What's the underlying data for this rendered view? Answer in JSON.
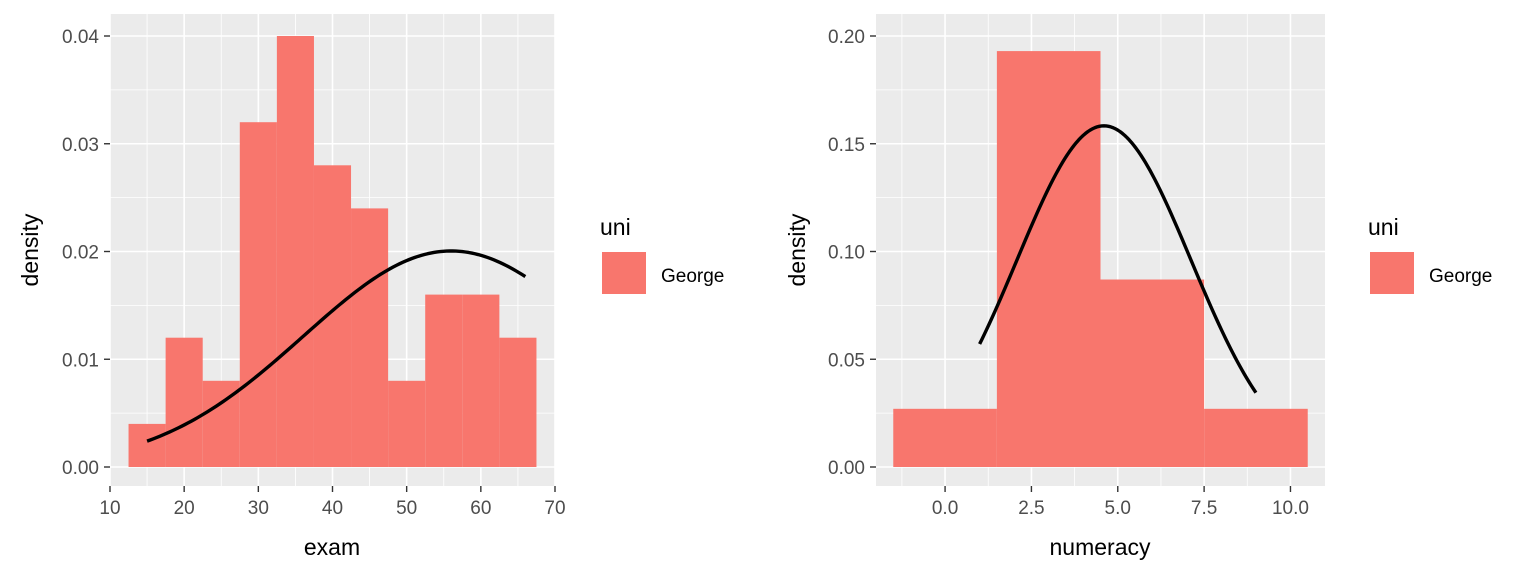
{
  "chart_data": [
    {
      "type": "bar",
      "xlabel": "exam",
      "ylabel": "density",
      "xlim": [
        10,
        70
      ],
      "ylim": [
        0,
        0.04
      ],
      "x_ticks": [
        10,
        20,
        30,
        40,
        50,
        60,
        70
      ],
      "x_tick_labels": [
        "10",
        "20",
        "30",
        "40",
        "50",
        "60",
        "70"
      ],
      "y_ticks": [
        0,
        0.01,
        0.02,
        0.03,
        0.04
      ],
      "y_tick_labels": [
        "0.00",
        "0.01",
        "0.02",
        "0.03",
        "0.04"
      ],
      "fill_color": "#f8766d",
      "bins": [
        {
          "x0": 12.5,
          "x1": 17.5,
          "density": 0.004
        },
        {
          "x0": 17.5,
          "x1": 22.5,
          "density": 0.012
        },
        {
          "x0": 22.5,
          "x1": 27.5,
          "density": 0.008
        },
        {
          "x0": 27.5,
          "x1": 32.5,
          "density": 0.032
        },
        {
          "x0": 32.5,
          "x1": 37.5,
          "density": 0.04
        },
        {
          "x0": 37.5,
          "x1": 42.5,
          "density": 0.028
        },
        {
          "x0": 42.5,
          "x1": 47.5,
          "density": 0.024
        },
        {
          "x0": 47.5,
          "x1": 52.5,
          "density": 0.008
        },
        {
          "x0": 52.5,
          "x1": 57.5,
          "density": 0.016
        },
        {
          "x0": 57.5,
          "x1": 62.5,
          "density": 0.016
        },
        {
          "x0": 62.5,
          "x1": 67.5,
          "density": 0.012
        }
      ],
      "curve": {
        "type": "normal-density",
        "mean": 56,
        "sd": 19.9,
        "x_range": [
          15,
          66
        ]
      },
      "grid": true,
      "legend": {
        "title": "uni",
        "entries": [
          {
            "label": "George",
            "color": "#f8766d"
          }
        ],
        "position": "right"
      }
    },
    {
      "type": "bar",
      "xlabel": "numeracy",
      "ylabel": "density",
      "xlim": [
        -2,
        11
      ],
      "ylim": [
        0,
        0.2
      ],
      "x_ticks": [
        0,
        2.5,
        5,
        7.5,
        10
      ],
      "x_tick_labels": [
        "0.0",
        "2.5",
        "5.0",
        "7.5",
        "10.0"
      ],
      "y_ticks": [
        0,
        0.05,
        0.1,
        0.15,
        0.2
      ],
      "y_tick_labels": [
        "0.00",
        "0.05",
        "0.10",
        "0.15",
        "0.20"
      ],
      "fill_color": "#f8766d",
      "bins": [
        {
          "x0": -1.5,
          "x1": 1.5,
          "density": 0.027
        },
        {
          "x0": 1.5,
          "x1": 4.5,
          "density": 0.193
        },
        {
          "x0": 4.5,
          "x1": 7.5,
          "density": 0.087
        },
        {
          "x0": 7.5,
          "x1": 10.5,
          "density": 0.027
        }
      ],
      "curve": {
        "type": "normal-density",
        "mean": 4.6,
        "sd": 2.52,
        "x_range": [
          1,
          9
        ]
      },
      "grid": true,
      "legend": {
        "title": "uni",
        "entries": [
          {
            "label": "George",
            "color": "#f8766d"
          }
        ],
        "position": "right"
      }
    }
  ]
}
